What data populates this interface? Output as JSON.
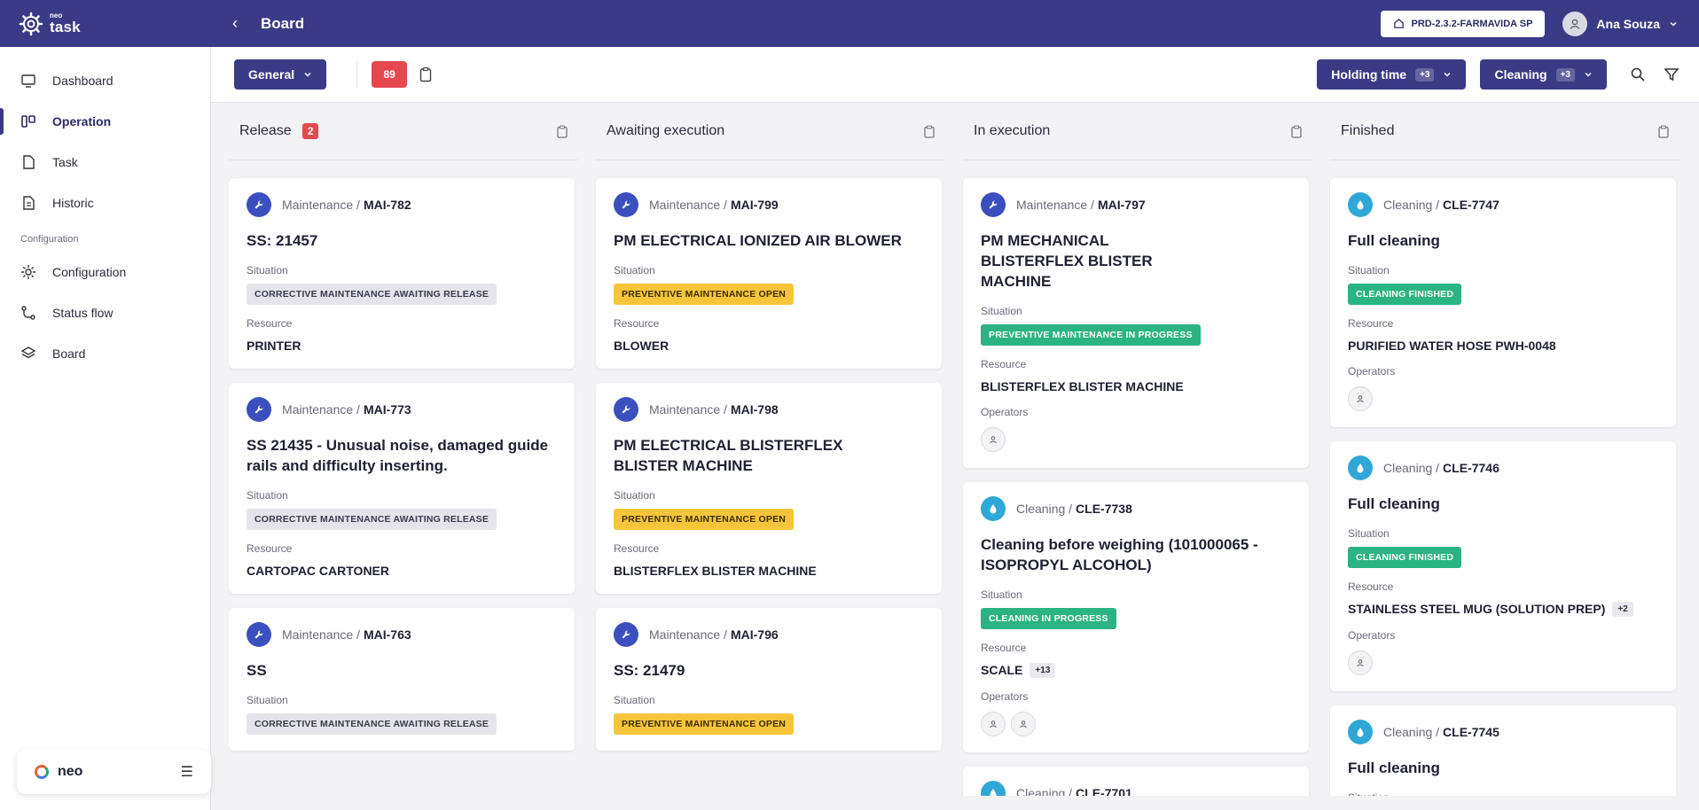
{
  "header": {
    "brand_small": "neo",
    "brand_big": "task",
    "page_title": "Board",
    "env_label": "PRD-2.3.2-FARMAVIDA SP",
    "user_name": "Ana Souza"
  },
  "sidebar": {
    "items": [
      {
        "label": "Dashboard"
      },
      {
        "label": "Operation"
      },
      {
        "label": "Task"
      },
      {
        "label": "Historic"
      }
    ],
    "section_label": "Configuration",
    "config_items": [
      {
        "label": "Configuration"
      },
      {
        "label": "Status flow"
      },
      {
        "label": "Board"
      }
    ],
    "footer_label": "neo"
  },
  "toolbar": {
    "view_label": "General",
    "total_count": "89",
    "filter1_label": "Holding time",
    "filter1_more": "+3",
    "filter2_label": "Cleaning",
    "filter2_more": "+3"
  },
  "labels": {
    "situation": "Situation",
    "resource": "Resource",
    "operators": "Operators"
  },
  "columns": [
    {
      "title": "Release",
      "count": "2",
      "cards": [
        {
          "type": "Maintenance / ",
          "code": "MAI-782",
          "title": "SS: 21457",
          "status": "CORRECTIVE MAINTENANCE AWAITING RELEASE",
          "resource": "PRINTER"
        },
        {
          "type": "Maintenance / ",
          "code": "MAI-773",
          "title": "SS 21435 - Unusual noise, damaged guide rails and difficulty inserting.",
          "status": "CORRECTIVE MAINTENANCE AWAITING RELEASE",
          "resource": "CARTOPAC CARTONER"
        },
        {
          "type": "Maintenance / ",
          "code": "MAI-763",
          "title": "SS",
          "status": "CORRECTIVE MAINTENANCE AWAITING RELEASE"
        }
      ]
    },
    {
      "title": "Awaiting execution",
      "cards": [
        {
          "type": "Maintenance / ",
          "code": "MAI-799",
          "title": "PM ELECTRICAL IONIZED AIR BLOWER",
          "status": "PREVENTIVE MAINTENANCE OPEN",
          "resource": "BLOWER"
        },
        {
          "type": "Maintenance / ",
          "code": "MAI-798",
          "title": "PM ELECTRICAL BLISTERFLEX BLISTER MACHINE",
          "status": "PREVENTIVE MAINTENANCE OPEN",
          "resource": "BLISTERFLEX BLISTER MACHINE"
        },
        {
          "type": "Maintenance / ",
          "code": "MAI-796",
          "title": "SS: 21479",
          "status": "PREVENTIVE MAINTENANCE OPEN"
        }
      ]
    },
    {
      "title": "In execution",
      "cards": [
        {
          "type": "Maintenance / ",
          "code": "MAI-797",
          "title": "PM MECHANICAL BLISTERFLEX BLISTER MACHINE",
          "status": "PREVENTIVE MAINTENANCE IN PROGRESS",
          "resource": "BLISTERFLEX BLISTER MACHINE"
        },
        {
          "type": "Cleaning / ",
          "code": "CLE-7738",
          "title": "Cleaning before weighing (101000065 - ISOPROPYL ALCOHOL)",
          "status": "CLEANING IN PROGRESS",
          "resource": "SCALE",
          "resource_more": "+13"
        },
        {
          "type": "Cleaning / ",
          "code": "CLE-7701"
        }
      ]
    },
    {
      "title": "Finished",
      "cards": [
        {
          "type": "Cleaning / ",
          "code": "CLE-7747",
          "title": "Full cleaning",
          "status": "CLEANING FINISHED",
          "resource": "PURIFIED WATER HOSE PWH-0048"
        },
        {
          "type": "Cleaning / ",
          "code": "CLE-7746",
          "title": "Full cleaning",
          "status": "CLEANING FINISHED",
          "resource": "STAINLESS STEEL MUG (SOLUTION PREP)",
          "resource_more": "+2"
        },
        {
          "type": "Cleaning / ",
          "code": "CLE-7745",
          "title": "Full cleaning"
        }
      ]
    }
  ],
  "colors": {
    "header": "#3b3a86",
    "maintenance_icon": "#3b4fbf",
    "cleaning_icon": "#2fa8d8",
    "status_grey": "#e4e4ea",
    "status_yellow": "#f6c53a",
    "status_green": "#2bb383",
    "count_red": "#e5484d"
  }
}
